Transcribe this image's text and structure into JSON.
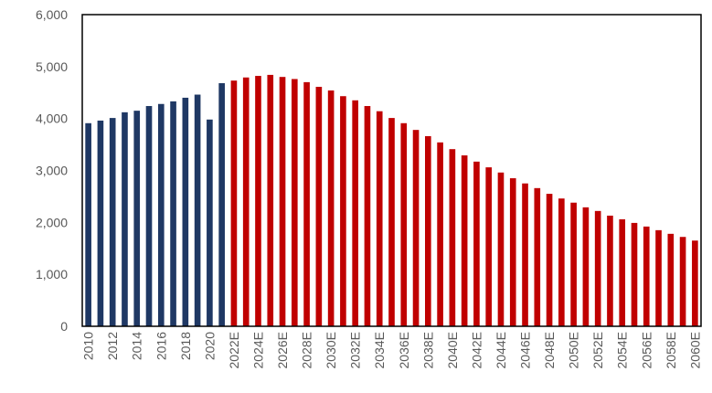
{
  "chart_data": {
    "type": "bar",
    "title": "",
    "xlabel": "",
    "ylabel": "",
    "ylim": [
      0,
      6000
    ],
    "yticks": [
      0,
      1000,
      2000,
      3000,
      4000,
      5000,
      6000
    ],
    "ytick_labels": [
      "0",
      "1,000",
      "2,000",
      "3,000",
      "4,000",
      "5,000",
      "6,000"
    ],
    "grid": false,
    "legend": "none",
    "colors": {
      "actual": "#1F3864",
      "estimate": "#C00000"
    },
    "categories": [
      "2010",
      "2011",
      "2012",
      "2013",
      "2014",
      "2015",
      "2016",
      "2017",
      "2018",
      "2019",
      "2020",
      "2021",
      "2022E",
      "2023E",
      "2024E",
      "2025E",
      "2026E",
      "2027E",
      "2028E",
      "2029E",
      "2030E",
      "2031E",
      "2032E",
      "2033E",
      "2034E",
      "2035E",
      "2036E",
      "2037E",
      "2038E",
      "2039E",
      "2040E",
      "2041E",
      "2042E",
      "2043E",
      "2044E",
      "2045E",
      "2046E",
      "2047E",
      "2048E",
      "2049E",
      "2050E",
      "2051E",
      "2052E",
      "2053E",
      "2054E",
      "2055E",
      "2056E",
      "2057E",
      "2058E",
      "2059E",
      "2060E"
    ],
    "values": [
      3910,
      3960,
      4010,
      4120,
      4150,
      4240,
      4280,
      4330,
      4400,
      4460,
      3980,
      4680,
      4730,
      4790,
      4820,
      4840,
      4800,
      4760,
      4700,
      4610,
      4540,
      4430,
      4350,
      4240,
      4140,
      4010,
      3910,
      3780,
      3660,
      3540,
      3410,
      3290,
      3170,
      3060,
      2960,
      2850,
      2750,
      2660,
      2550,
      2460,
      2380,
      2290,
      2220,
      2130,
      2060,
      1990,
      1920,
      1850,
      1780,
      1720,
      1650
    ],
    "estimate_start": "2022E",
    "xtick_labels": [
      "2010",
      "2012",
      "2014",
      "2016",
      "2018",
      "2020",
      "2022E",
      "2024E",
      "2026E",
      "2028E",
      "2030E",
      "2032E",
      "2034E",
      "2036E",
      "2038E",
      "2040E",
      "2042E",
      "2044E",
      "2046E",
      "2048E",
      "2050E",
      "2052E",
      "2054E",
      "2056E",
      "2058E",
      "2060E"
    ]
  }
}
